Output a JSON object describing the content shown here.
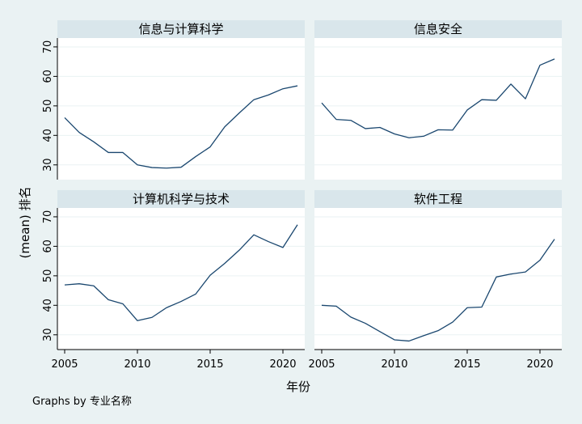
{
  "chart_data": {
    "type": "line",
    "xlabel": "年份",
    "ylabel": "(mean) 排名",
    "note": "Graphs by 专业名称",
    "xlim": [
      2004.5,
      2021.5
    ],
    "ylim": [
      25,
      73
    ],
    "xticks": [
      2005,
      2010,
      2015,
      2020
    ],
    "yticks": [
      30,
      40,
      50,
      60,
      70
    ],
    "grid": true,
    "colors": {
      "line": "#1a476f",
      "panel": "#ffffff",
      "strip": "#d9e6eb",
      "background": "#eaf2f3",
      "grid": "#eaf2f3"
    },
    "x": [
      2005,
      2006,
      2007,
      2008,
      2009,
      2010,
      2011,
      2012,
      2013,
      2014,
      2015,
      2016,
      2017,
      2018,
      2019,
      2020,
      2021
    ],
    "panels": [
      {
        "title": "信息与计算科学",
        "values": [
          46,
          41,
          37.8,
          34.2,
          34.2,
          30,
          29.1,
          28.9,
          29.2,
          32.8,
          36.1,
          42.9,
          47.6,
          52.1,
          53.7,
          55.8,
          56.8
        ]
      },
      {
        "title": "信息安全",
        "values": [
          51,
          45.4,
          45.1,
          42.3,
          42.7,
          40.5,
          39.2,
          39.7,
          41.9,
          41.8,
          48.6,
          52.1,
          51.9,
          57.4,
          52.4,
          63.8,
          65.9
        ]
      },
      {
        "title": "计算机科学与技术",
        "values": [
          46.9,
          47.3,
          46.6,
          41.9,
          40.5,
          34.8,
          35.9,
          39.2,
          41.3,
          43.8,
          50.2,
          54.2,
          58.7,
          63.9,
          61.6,
          59.6,
          67.3
        ]
      },
      {
        "title": "软件工程",
        "values": [
          40,
          39.7,
          36,
          33.9,
          31.1,
          28.3,
          27.9,
          29.7,
          31.4,
          34.3,
          39.2,
          39.4,
          49.6,
          50.6,
          51.3,
          55.3,
          62.4
        ]
      }
    ]
  }
}
